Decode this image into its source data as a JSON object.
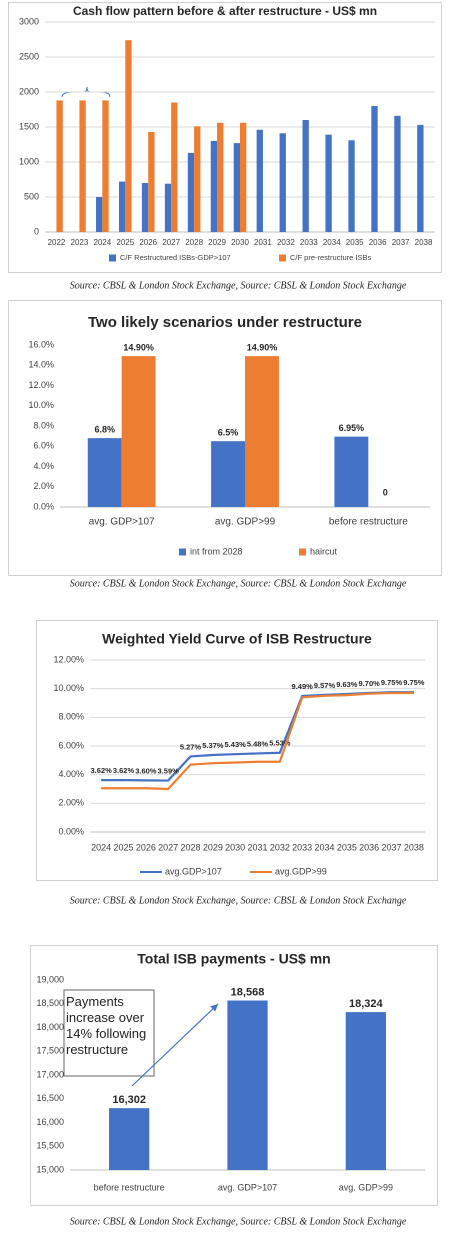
{
  "chart_data": [
    {
      "type": "bar",
      "title": "Cash flow pattern before & after restructure  - US$ mn",
      "categories": [
        "2022",
        "2023",
        "2024",
        "2025",
        "2026",
        "2027",
        "2028",
        "2029",
        "2030",
        "2031",
        "2032",
        "2033",
        "2034",
        "2035",
        "2036",
        "2037",
        "2038"
      ],
      "series": [
        {
          "name": "C/F Restructured ISBs-GDP>107",
          "color": "#4472c4",
          "values": [
            null,
            null,
            500,
            720,
            700,
            690,
            1130,
            1300,
            1270,
            1460,
            1410,
            1600,
            1390,
            1310,
            1800,
            1660,
            1530
          ]
        },
        {
          "name": "C/F pre-restructure ISBs",
          "color": "#ed7d31",
          "values": [
            1880,
            1880,
            1880,
            2740,
            1430,
            1850,
            1510,
            1560,
            1560,
            null,
            null,
            null,
            null,
            null,
            null,
            null,
            null
          ]
        }
      ],
      "ylim": [
        0,
        3000
      ],
      "yticks": [
        0,
        500,
        1000,
        1500,
        2000,
        2500,
        3000
      ],
      "grid": true,
      "legend": "bottom",
      "caption": "Source: CBSL & London Stock Exchange, Source: CBSL & London Stock Exchange"
    },
    {
      "type": "bar",
      "title": "Two likely scenarios under restructure",
      "categories": [
        "avg. GDP>107",
        "avg. GDP>99",
        "before restructure"
      ],
      "series": [
        {
          "name": "int from 2028",
          "color": "#4472c4",
          "values": [
            6.8,
            6.5,
            6.95
          ],
          "value_labels": [
            "6.8%",
            "6.5%",
            "6.95%"
          ]
        },
        {
          "name": "haircut",
          "color": "#ed7d31",
          "values": [
            14.9,
            14.9,
            0
          ],
          "value_labels": [
            "14.90%",
            "14.90%",
            "0"
          ]
        }
      ],
      "ylim": [
        0,
        16
      ],
      "yticks": [
        {
          "value": 0,
          "label": "0.0%"
        },
        {
          "value": 2,
          "label": "2.0%"
        },
        {
          "value": 4,
          "label": "4.0%"
        },
        {
          "value": 6,
          "label": "6.0%"
        },
        {
          "value": 8,
          "label": "8.0%"
        },
        {
          "value": 10,
          "label": "10.0%"
        },
        {
          "value": 12,
          "label": "12.0%"
        },
        {
          "value": 14,
          "label": "14.0%"
        },
        {
          "value": 16,
          "label": "16.0%"
        }
      ],
      "grid": false,
      "legend": "bottom",
      "caption": "Source: CBSL & London Stock Exchange, Source: CBSL & London Stock Exchange"
    },
    {
      "type": "line",
      "title": "Weighted Yield Curve of ISB Restructure",
      "categories": [
        "2024",
        "2025",
        "2026",
        "2027",
        "2028",
        "2029",
        "2030",
        "2031",
        "2032",
        "2033",
        "2034",
        "2035",
        "2036",
        "2037",
        "2038"
      ],
      "series": [
        {
          "name": "avg.GDP>107",
          "color": "#4472c4",
          "values": [
            3.62,
            3.62,
            3.6,
            3.59,
            5.27,
            5.37,
            5.43,
            5.48,
            5.53,
            9.49,
            9.57,
            9.63,
            9.7,
            9.75,
            9.75
          ],
          "value_labels": [
            "3.62%",
            "3.62%",
            "3.60%",
            "3.59%",
            "5.27%",
            "5.37%",
            "5.43%",
            "5.48%",
            "5.53%",
            "9.49%",
            "9.57%",
            "9.63%",
            "9.70%",
            "9.75%",
            "9.75%"
          ]
        },
        {
          "name": "avg.GDP>99",
          "color": "#ed7d31",
          "values": [
            3.05,
            3.05,
            3.05,
            3.0,
            4.7,
            4.8,
            4.85,
            4.9,
            4.9,
            9.4,
            9.5,
            9.55,
            9.65,
            9.7,
            9.7
          ]
        }
      ],
      "ylim": [
        0,
        12
      ],
      "yticks": [
        {
          "value": 0,
          "label": "0.00%"
        },
        {
          "value": 2,
          "label": "2.00%"
        },
        {
          "value": 4,
          "label": "4.00%"
        },
        {
          "value": 6,
          "label": "6.00%"
        },
        {
          "value": 8,
          "label": "8.00%"
        },
        {
          "value": 10,
          "label": "10.00%"
        },
        {
          "value": 12,
          "label": "12.00%"
        }
      ],
      "grid": true,
      "legend": "bottom",
      "caption": "Source: CBSL & London Stock Exchange, Source: CBSL & London Stock Exchange"
    },
    {
      "type": "bar",
      "title": "Total ISB payments - US$ mn",
      "categories": [
        "before restructure",
        "avg. GDP>107",
        "avg. GDP>99"
      ],
      "series": [
        {
          "color": "#4472c4",
          "values": [
            16302,
            18568,
            18324
          ],
          "value_labels": [
            "16,302",
            "18,568",
            "18,324"
          ]
        }
      ],
      "ylim": [
        15000,
        19000
      ],
      "yticks": [
        {
          "value": 15000,
          "label": "15,000"
        },
        {
          "value": 15500,
          "label": "15,500"
        },
        {
          "value": 16000,
          "label": "16,000"
        },
        {
          "value": 16500,
          "label": "16,500"
        },
        {
          "value": 17000,
          "label": "17,000"
        },
        {
          "value": 17500,
          "label": "17,500"
        },
        {
          "value": 18000,
          "label": "18,000"
        },
        {
          "value": 18500,
          "label": "18,500"
        },
        {
          "value": 19000,
          "label": "19,000"
        }
      ],
      "grid": false,
      "annotation": "Payments increase over 14% following restructure",
      "caption": "Source: CBSL & London Stock Exchange, Source: CBSL & London Stock Exchange"
    }
  ]
}
